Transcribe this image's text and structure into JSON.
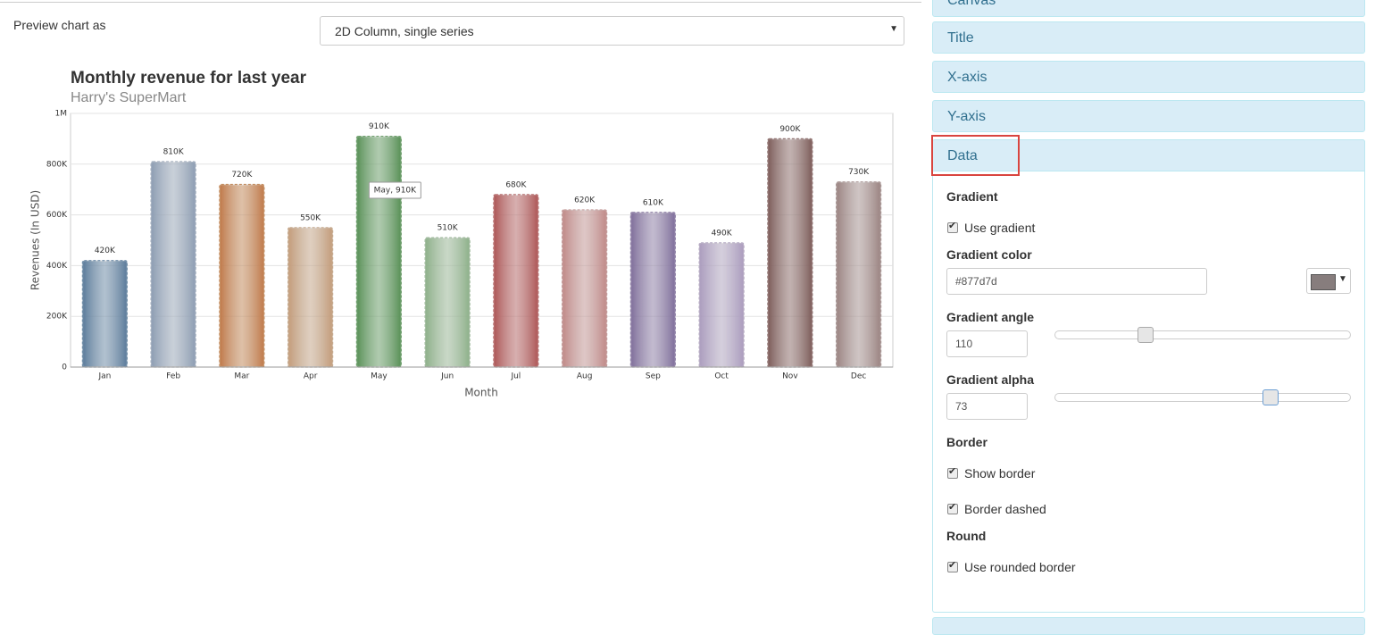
{
  "ui": {
    "preview_label": "Preview chart as",
    "preview_select": "2D Column, single series",
    "panels": [
      "Canvas",
      "Title",
      "X-axis",
      "Y-axis",
      "Data"
    ],
    "data_panel": {
      "gradient_heading": "Gradient",
      "use_gradient": {
        "label": "Use gradient",
        "checked": true
      },
      "gradient_color_label": "Gradient color",
      "gradient_color": "#877d7d",
      "gradient_angle_label": "Gradient angle",
      "gradient_angle": 110,
      "gradient_alpha_label": "Gradient alpha",
      "gradient_alpha": 73,
      "border_heading": "Border",
      "show_border": {
        "label": "Show border",
        "checked": true
      },
      "border_dashed": {
        "label": "Border dashed",
        "checked": true
      },
      "round_heading": "Round",
      "rounded_border": {
        "label": "Use rounded border",
        "checked": true
      }
    }
  },
  "chart_data": {
    "type": "bar",
    "title": "Monthly revenue for last year",
    "subtitle": "Harry's SuperMart",
    "x_label": "Month",
    "y_label": "Revenues (In USD)",
    "categories": [
      "Jan",
      "Feb",
      "Mar",
      "Apr",
      "May",
      "Jun",
      "Jul",
      "Aug",
      "Sep",
      "Oct",
      "Nov",
      "Dec"
    ],
    "values": [
      420000,
      810000,
      720000,
      550000,
      910000,
      510000,
      680000,
      620000,
      610000,
      490000,
      900000,
      730000
    ],
    "value_labels": [
      "420K",
      "810K",
      "720K",
      "550K",
      "910K",
      "510K",
      "680K",
      "620K",
      "610K",
      "490K",
      "900K",
      "730K"
    ],
    "colors": [
      "#8fb3d3",
      "#c5d5ea",
      "#f5b27a",
      "#f8d4b2",
      "#8cc98a",
      "#c6e7c2",
      "#e58a8a",
      "#f5c2c0",
      "#b7a5d3",
      "#e2d4f3",
      "#b5918e",
      "#d3bcba"
    ],
    "ylim": [
      0,
      1000000
    ],
    "yticks": [
      0,
      {
        "value": 200000,
        "label": "200K"
      },
      {
        "value": 400000,
        "label": "400K"
      },
      {
        "value": 600000,
        "label": "600K"
      },
      {
        "value": 800000,
        "label": "800K"
      },
      {
        "value": 1000000,
        "label": "1M"
      }
    ],
    "grid": true,
    "tooltip": "May, 910K"
  }
}
